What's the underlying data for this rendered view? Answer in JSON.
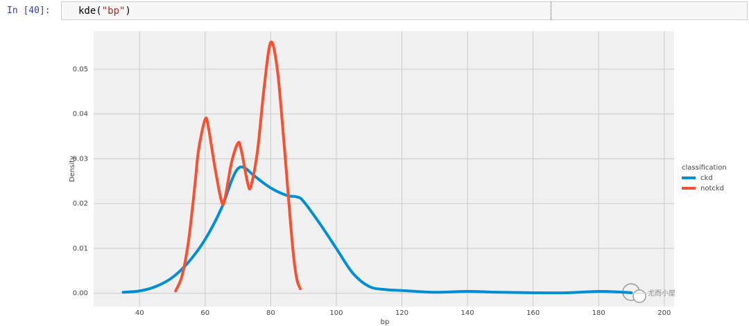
{
  "cell": {
    "prompt": "In [40]:",
    "code": [
      "kde(",
      "\"bp\"",
      ")"
    ]
  },
  "chart_data": {
    "type": "line",
    "xlabel": "bp",
    "ylabel": "Density",
    "xlim": [
      26,
      203
    ],
    "ylim": [
      -0.003,
      0.0585
    ],
    "xticks": [
      40,
      60,
      80,
      100,
      120,
      140,
      160,
      180,
      200
    ],
    "yticks": [
      {
        "value": 0,
        "label": "0.00"
      },
      0.01,
      0.02,
      0.03,
      0.04,
      0.05
    ],
    "grid": true,
    "legend": "right",
    "legend_title": "classification",
    "series": [
      {
        "name": "ckd",
        "color": "#008fd5",
        "x": [
          35,
          40,
          45,
          50,
          55,
          60,
          65,
          68,
          70,
          72,
          75,
          80,
          85,
          88,
          90,
          95,
          100,
          105,
          110,
          115,
          120,
          130,
          140,
          150,
          160,
          170,
          180,
          185,
          190
        ],
        "values": [
          0.0002,
          0.0005,
          0.0015,
          0.0035,
          0.007,
          0.012,
          0.019,
          0.025,
          0.0278,
          0.028,
          0.0262,
          0.0235,
          0.0218,
          0.0215,
          0.0205,
          0.0155,
          0.01,
          0.0045,
          0.0015,
          0.0008,
          0.0006,
          0.0002,
          0.0004,
          0.0002,
          0.0001,
          0.0001,
          0.0004,
          0.0003,
          0.0001
        ]
      },
      {
        "name": "notckd",
        "color": "#fc4f30",
        "x": [
          51,
          53,
          55,
          57,
          58,
          60,
          61,
          63,
          65,
          66,
          68,
          70,
          71,
          73,
          74,
          76,
          78,
          80,
          82,
          84,
          86,
          87,
          88,
          89
        ],
        "values": [
          0.0005,
          0.004,
          0.012,
          0.025,
          0.032,
          0.0388,
          0.037,
          0.028,
          0.0205,
          0.021,
          0.029,
          0.0335,
          0.032,
          0.0245,
          0.024,
          0.032,
          0.046,
          0.056,
          0.05,
          0.034,
          0.016,
          0.008,
          0.003,
          0.001
        ]
      }
    ]
  },
  "watermark": "尤而小屋"
}
